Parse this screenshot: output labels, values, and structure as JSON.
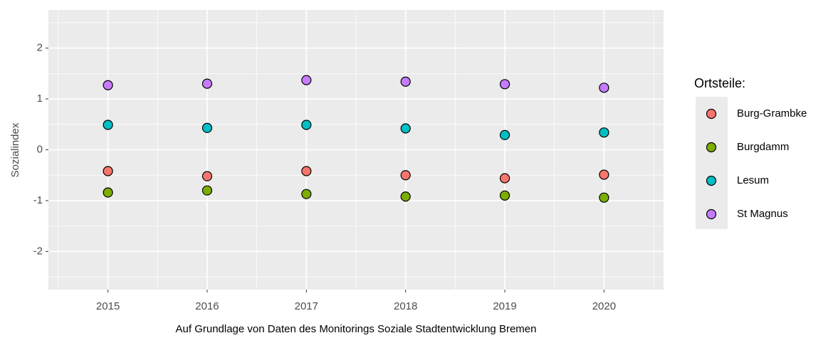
{
  "chart_data": {
    "type": "scatter",
    "x_label": "Auf Grundlage von Daten des Monitorings Soziale Stadtentwicklung Bremen",
    "y_label": "Sozialindex",
    "legend_title": "Ortsteile:",
    "legend_position": "right",
    "grid": true,
    "x": [
      2015,
      2016,
      2017,
      2018,
      2019,
      2020
    ],
    "xlim": [
      2014.4,
      2020.6
    ],
    "xticks": [
      2015,
      2016,
      2017,
      2018,
      2019,
      2020
    ],
    "ylim": [
      -2.75,
      2.75
    ],
    "yticks": [
      -2,
      -1,
      0,
      1,
      2
    ],
    "series": [
      {
        "name": "Burg-Grambke",
        "color": "#F8766D",
        "values": [
          -0.42,
          -0.52,
          -0.42,
          -0.5,
          -0.56,
          -0.49
        ]
      },
      {
        "name": "Burgdamm",
        "color": "#7CAE00",
        "values": [
          -0.84,
          -0.8,
          -0.87,
          -0.92,
          -0.9,
          -0.94
        ]
      },
      {
        "name": "Lesum",
        "color": "#00BFC4",
        "values": [
          0.49,
          0.43,
          0.49,
          0.42,
          0.29,
          0.34
        ]
      },
      {
        "name": "St Magnus",
        "color": "#C77CFF",
        "values": [
          1.27,
          1.3,
          1.37,
          1.34,
          1.29,
          1.22
        ]
      }
    ]
  }
}
